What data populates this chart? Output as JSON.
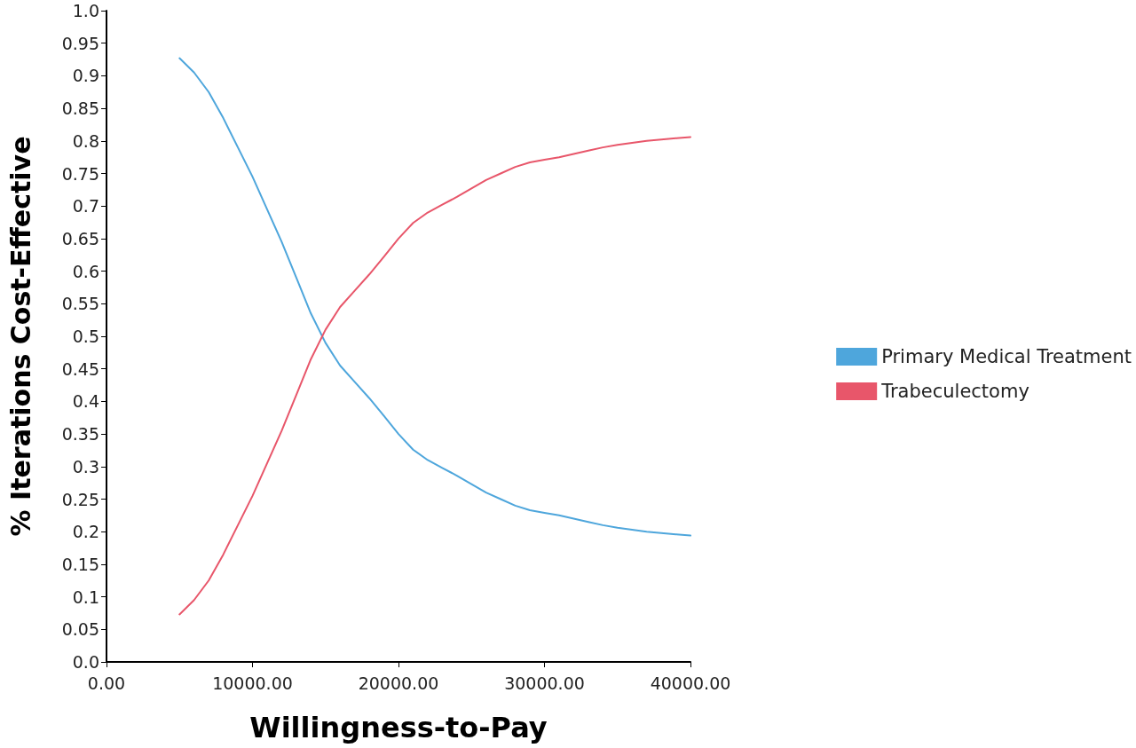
{
  "chart_data": {
    "type": "line",
    "xlabel": "Willingness-to-Pay",
    "ylabel": "% Iterations Cost-Effective",
    "x": [
      5000,
      6000,
      7000,
      8000,
      9000,
      10000,
      11000,
      12000,
      13000,
      14000,
      15000,
      16000,
      17000,
      18000,
      19000,
      20000,
      21000,
      22000,
      23000,
      24000,
      25000,
      26000,
      27000,
      28000,
      29000,
      30000,
      31000,
      32000,
      33000,
      34000,
      35000,
      36000,
      37000,
      38000,
      39000,
      40000
    ],
    "series": [
      {
        "name": "Primary Medical Treatment",
        "color": "#4ea6dc",
        "values": [
          0.927,
          0.905,
          0.875,
          0.835,
          0.79,
          0.745,
          0.695,
          0.645,
          0.59,
          0.535,
          0.49,
          0.455,
          0.43,
          0.405,
          0.378,
          0.35,
          0.326,
          0.31,
          0.298,
          0.286,
          0.273,
          0.26,
          0.25,
          0.24,
          0.233,
          0.229,
          0.225,
          0.22,
          0.215,
          0.21,
          0.206,
          0.203,
          0.2,
          0.198,
          0.196,
          0.194
        ]
      },
      {
        "name": "Trabeculectomy",
        "color": "#e8566a",
        "values": [
          0.073,
          0.095,
          0.125,
          0.165,
          0.21,
          0.255,
          0.305,
          0.355,
          0.41,
          0.465,
          0.51,
          0.545,
          0.57,
          0.595,
          0.622,
          0.65,
          0.674,
          0.69,
          0.702,
          0.714,
          0.727,
          0.74,
          0.75,
          0.76,
          0.767,
          0.771,
          0.775,
          0.78,
          0.785,
          0.79,
          0.794,
          0.797,
          0.8,
          0.802,
          0.804,
          0.806
        ]
      }
    ],
    "xlim": [
      0,
      40000
    ],
    "xticks": [
      {
        "value": 0,
        "label": "0.00"
      },
      {
        "value": 10000,
        "label": "10000.00"
      },
      {
        "value": 20000,
        "label": "20000.00"
      },
      {
        "value": 30000,
        "label": "30000.00"
      },
      {
        "value": 40000,
        "label": "40000.00"
      }
    ],
    "ylim": [
      0,
      1
    ],
    "yticks": [
      {
        "value": 0,
        "label": "0.0"
      },
      0.05,
      0.1,
      0.15,
      0.2,
      0.25,
      0.3,
      0.35,
      0.4,
      0.45,
      {
        "value": 0.5,
        "label": "0.5"
      },
      0.55,
      0.6,
      0.65,
      0.7,
      0.75,
      0.8,
      0.85,
      0.9,
      0.95,
      {
        "value": 1,
        "label": "1.0"
      }
    ],
    "grid": false,
    "legend": "right",
    "marker": "none",
    "line_style": "solid"
  }
}
